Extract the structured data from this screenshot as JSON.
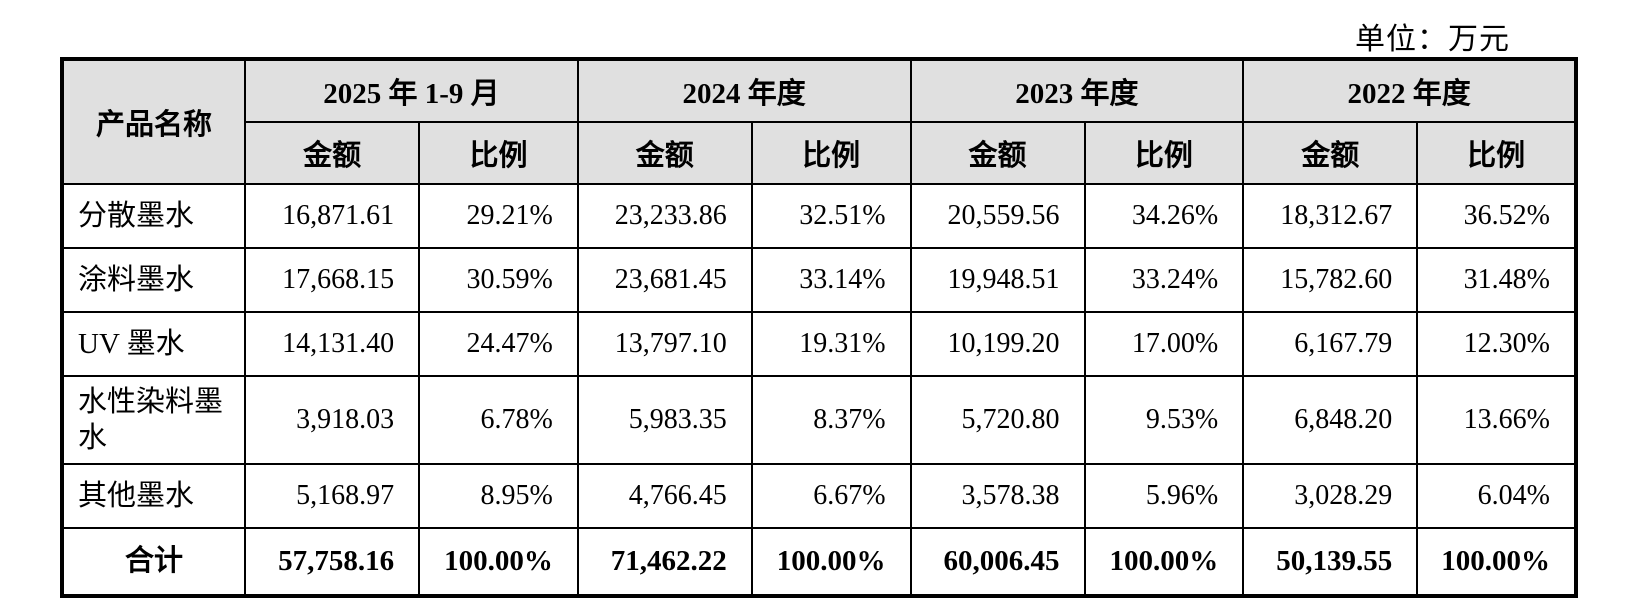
{
  "unit_label": "单位：万元",
  "colors": {
    "header_bg": "#e0e0e0",
    "border": "#000000",
    "text": "#000000",
    "background": "#ffffff"
  },
  "table": {
    "product_header": "产品名称",
    "periods": [
      "2025 年 1-9 月",
      "2024 年度",
      "2023 年度",
      "2022 年度"
    ],
    "sub_headers": {
      "amount": "金额",
      "ratio": "比例"
    },
    "rows": [
      {
        "name": "分散墨水",
        "values": [
          "16,871.61",
          "29.21%",
          "23,233.86",
          "32.51%",
          "20,559.56",
          "34.26%",
          "18,312.67",
          "36.52%"
        ]
      },
      {
        "name": "涂料墨水",
        "values": [
          "17,668.15",
          "30.59%",
          "23,681.45",
          "33.14%",
          "19,948.51",
          "33.24%",
          "15,782.60",
          "31.48%"
        ]
      },
      {
        "name": "UV 墨水",
        "values": [
          "14,131.40",
          "24.47%",
          "13,797.10",
          "19.31%",
          "10,199.20",
          "17.00%",
          "6,167.79",
          "12.30%"
        ]
      },
      {
        "name": "水性染料墨水",
        "values": [
          "3,918.03",
          "6.78%",
          "5,983.35",
          "8.37%",
          "5,720.80",
          "9.53%",
          "6,848.20",
          "13.66%"
        ]
      },
      {
        "name": "其他墨水",
        "values": [
          "5,168.97",
          "8.95%",
          "4,766.45",
          "6.67%",
          "3,578.38",
          "5.96%",
          "3,028.29",
          "6.04%"
        ]
      }
    ],
    "total": {
      "name": "合计",
      "values": [
        "57,758.16",
        "100.00%",
        "71,462.22",
        "100.00%",
        "60,006.45",
        "100.00%",
        "50,139.55",
        "100.00%"
      ]
    }
  }
}
